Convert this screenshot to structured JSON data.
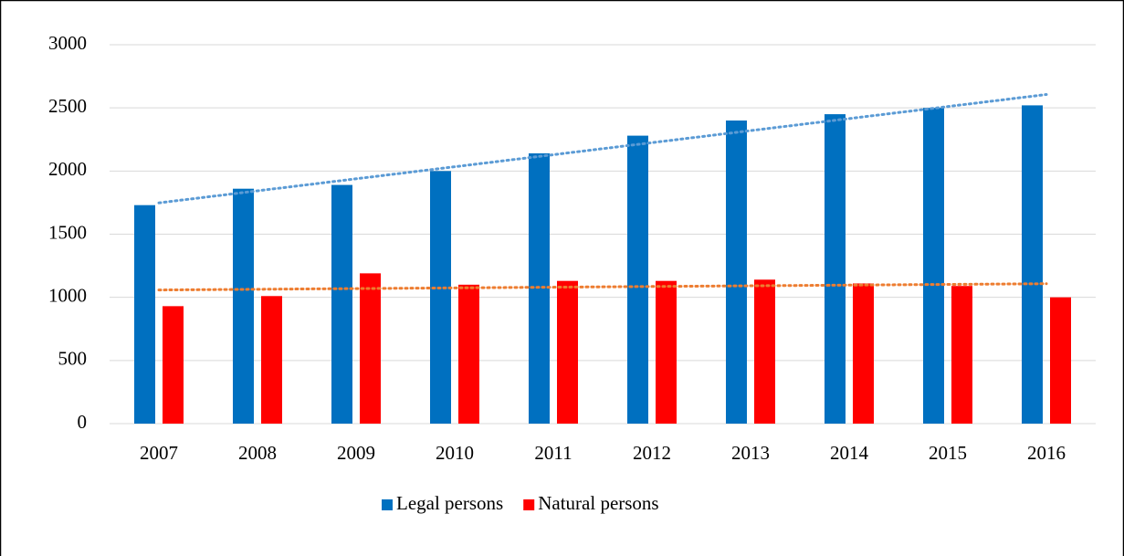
{
  "chart_data": {
    "type": "bar",
    "categories": [
      "2007",
      "2008",
      "2009",
      "2010",
      "2011",
      "2012",
      "2013",
      "2014",
      "2015",
      "2016"
    ],
    "series": [
      {
        "name": "Legal persons",
        "color": "#0070c0",
        "trend_color": "#5b9bd5",
        "values": [
          1730,
          1860,
          1890,
          2000,
          2140,
          2280,
          2400,
          2450,
          2500,
          2520
        ]
      },
      {
        "name": "Natural persons",
        "color": "#ff0000",
        "trend_color": "#ed7d31",
        "values": [
          930,
          1010,
          1190,
          1100,
          1130,
          1130,
          1140,
          1110,
          1090,
          1000
        ]
      }
    ],
    "ylim": [
      0,
      3000
    ],
    "yticks": [
      0,
      500,
      1000,
      1500,
      2000,
      2500,
      3000
    ],
    "grid": true,
    "trendline": "linear",
    "legend": "bottom"
  }
}
